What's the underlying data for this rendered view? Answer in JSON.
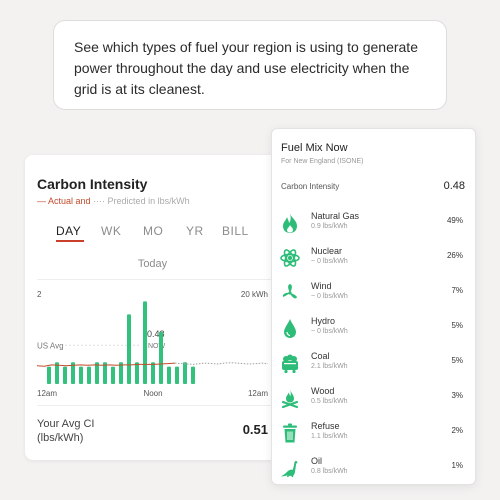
{
  "message": "See which types of fuel your region is using to generate power throughout the day and use electricity when the grid is at its cleanest.",
  "carbon_intensity_card": {
    "title": "Carbon Intensity",
    "legend_actual": "— Actual and",
    "legend_predicted": "···· Predicted in lbs/kWh",
    "tabs": [
      {
        "label": "DAY",
        "active": true
      },
      {
        "label": "WK",
        "active": false
      },
      {
        "label": "MO",
        "active": false
      },
      {
        "label": "YR",
        "active": false
      },
      {
        "label": "BILL",
        "active": false
      }
    ],
    "period": "Today",
    "avg_label_line1": "Your Avg CI",
    "avg_label_line2": "(lbs/kWh)",
    "avg_value": "0.51"
  },
  "chart_data": {
    "type": "bar",
    "left_axis_label": "2",
    "right_axis_label": "20 kWh",
    "reference_label": "US Avg",
    "current_value_label": "0.48",
    "current_marker_label": "NOW",
    "x_tick_labels": [
      "12am",
      "Noon",
      "12am"
    ],
    "usage_kwh": [
      0,
      4,
      5,
      4,
      5,
      4,
      4,
      5,
      5,
      4,
      5,
      16,
      5,
      19,
      5,
      12,
      4,
      4,
      5,
      4
    ],
    "actual_ci": [
      0.42,
      0.41,
      0.44,
      0.43,
      0.42,
      0.43,
      0.44,
      0.43,
      0.44,
      0.43,
      0.44,
      0.43,
      0.44,
      0.44,
      0.45,
      0.45,
      0.45,
      0.46,
      0.47,
      0.48
    ],
    "predicted_ci": [
      0.48,
      0.47,
      0.46,
      0.45,
      0.47,
      0.48,
      0.47,
      0.46,
      0.48,
      0.49,
      0.48,
      0.47,
      0.46,
      0.47,
      0.48,
      0.47
    ],
    "us_avg_ci": 0.89,
    "ci_range": [
      0,
      2
    ],
    "kwh_range": [
      0,
      20
    ],
    "grid": false,
    "colors": {
      "usage": "#33c27d",
      "actual": "#c44a2a",
      "predicted": "#a0a0a0"
    }
  },
  "fuel_mix": {
    "title": "Fuel Mix Now",
    "region": "For New England (ISONE)",
    "ci_label": "Carbon Intensity",
    "ci_value": "0.48",
    "accent_color": "#2ebd78",
    "items": [
      {
        "name": "Natural Gas",
        "amount": "0.9 lbs/kWh",
        "percent": "49%",
        "icon": "flame-icon"
      },
      {
        "name": "Nuclear",
        "amount": "~ 0 lbs/kWh",
        "percent": "26%",
        "icon": "atom-icon"
      },
      {
        "name": "Wind",
        "amount": "~ 0 lbs/kWh",
        "percent": "7%",
        "icon": "fan-icon"
      },
      {
        "name": "Hydro",
        "amount": "~ 0 lbs/kWh",
        "percent": "5%",
        "icon": "water-drop-icon"
      },
      {
        "name": "Coal",
        "amount": "2.1 lbs/kWh",
        "percent": "5%",
        "icon": "coal-cart-icon"
      },
      {
        "name": "Wood",
        "amount": "0.5 lbs/kWh",
        "percent": "3%",
        "icon": "campfire-icon"
      },
      {
        "name": "Refuse",
        "amount": "1.1 lbs/kWh",
        "percent": "2%",
        "icon": "trash-can-icon"
      },
      {
        "name": "Oil",
        "amount": "0.8 lbs/kWh",
        "percent": "1%",
        "icon": "dinosaur-icon"
      }
    ]
  }
}
